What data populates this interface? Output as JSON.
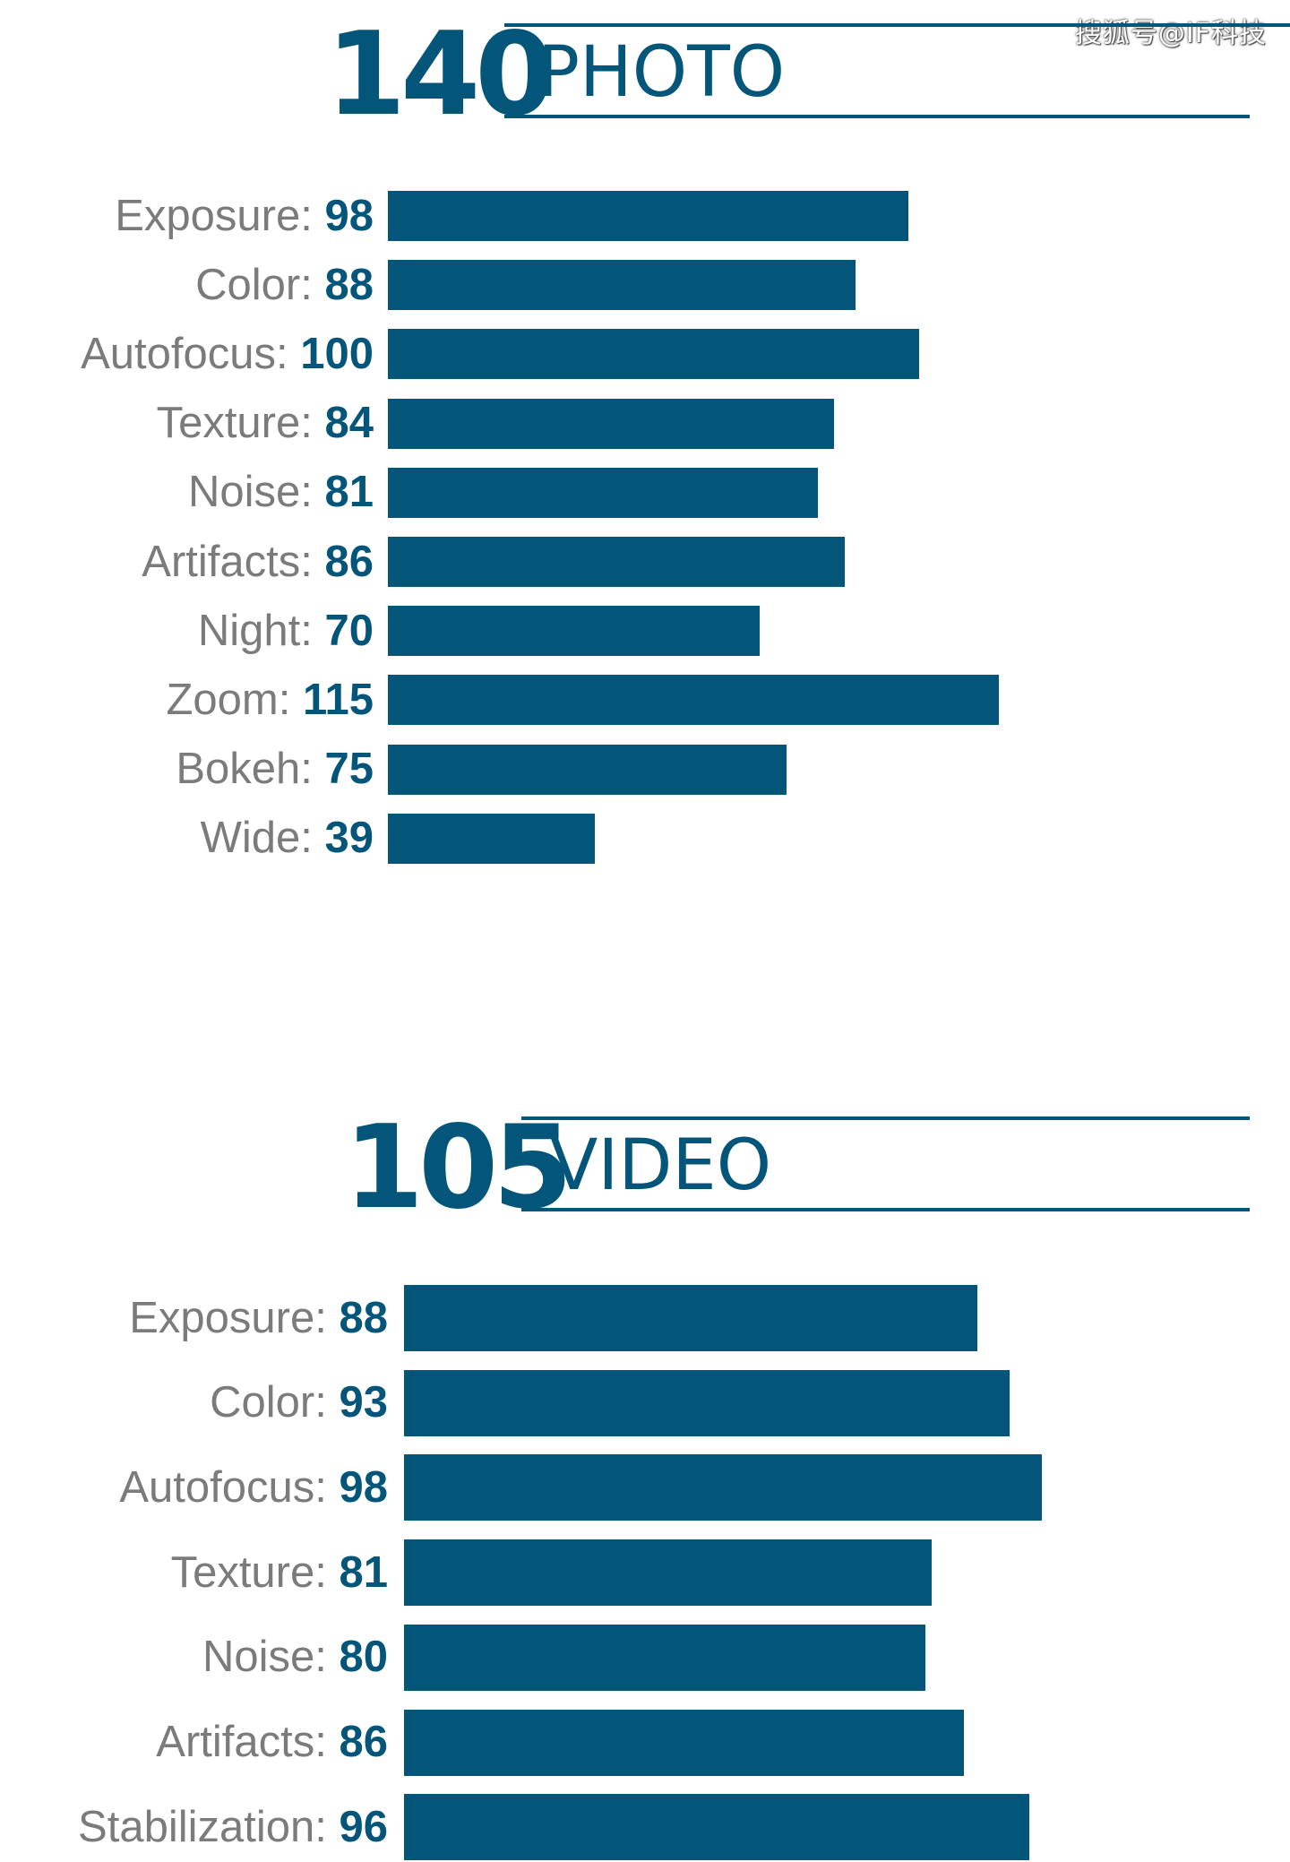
{
  "watermark": "搜狐号@IF科技",
  "bar_color": "#04557a",
  "chart_data": [
    {
      "type": "bar",
      "orientation": "horizontal",
      "score": "140",
      "title": "PHOTO",
      "categories": [
        "Exposure",
        "Color",
        "Autofocus",
        "Texture",
        "Noise",
        "Artifacts",
        "Night",
        "Zoom",
        "Bokeh",
        "Wide"
      ],
      "values": [
        98,
        88,
        100,
        84,
        81,
        86,
        70,
        115,
        75,
        39
      ],
      "xlim": [
        0,
        120
      ],
      "grid": false
    },
    {
      "type": "bar",
      "orientation": "horizontal",
      "score": "105",
      "title": "VIDEO",
      "categories": [
        "Exposure",
        "Color",
        "Autofocus",
        "Texture",
        "Noise",
        "Artifacts",
        "Stabilization"
      ],
      "values": [
        88,
        93,
        98,
        81,
        80,
        86,
        96
      ],
      "xlim": [
        0,
        105
      ],
      "grid": false
    }
  ]
}
